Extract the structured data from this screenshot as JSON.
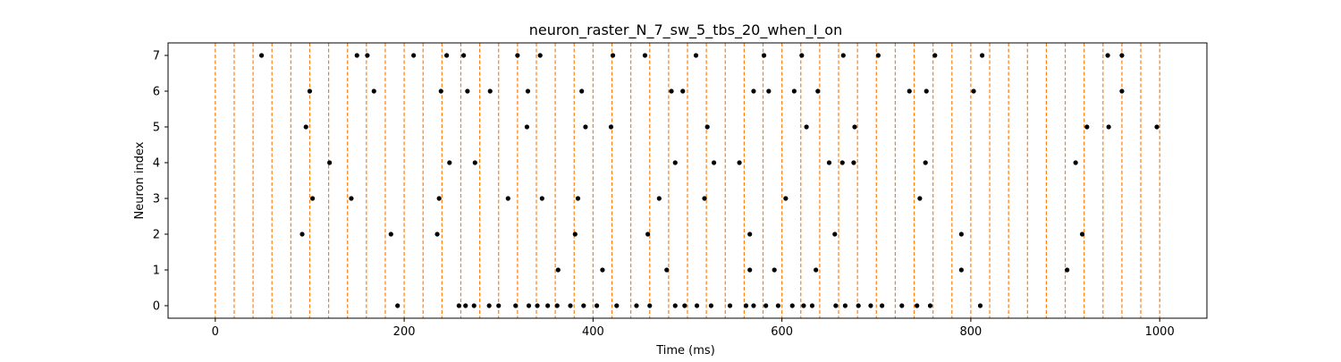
{
  "chart_data": {
    "type": "scatter",
    "title": "neuron_raster_N_7_sw_5_tbs_20_when_I_on",
    "xlabel": "Time (ms)",
    "ylabel": "Neuron index",
    "xlim": [
      -50,
      1050
    ],
    "ylim": [
      -0.35,
      7.35
    ],
    "xticks": [
      0,
      200,
      400,
      600,
      800,
      1000
    ],
    "yticks": [
      0,
      1,
      2,
      3,
      4,
      5,
      6,
      7
    ],
    "grid": false,
    "colors": {
      "spike": "#000000",
      "window": "#ff7f0e"
    },
    "window_lines": [
      0,
      20,
      40,
      60,
      80,
      100,
      120,
      140,
      160,
      180,
      200,
      220,
      240,
      260,
      280,
      300,
      320,
      340,
      360,
      380,
      400,
      420,
      440,
      460,
      480,
      500,
      520,
      540,
      560,
      580,
      600,
      620,
      640,
      660,
      680,
      700,
      720,
      740,
      760,
      780,
      800,
      820,
      840,
      860,
      880,
      900,
      920,
      940,
      960,
      980,
      1000
    ],
    "series": [
      {
        "neuron": 0,
        "x": [
          193,
          258,
          265,
          274,
          290,
          300,
          318,
          332,
          341,
          352,
          362,
          376,
          390,
          404,
          425,
          446,
          460,
          487,
          497,
          510,
          525,
          545,
          562,
          570,
          583,
          596,
          611,
          623,
          632,
          657,
          667,
          681,
          694,
          706,
          727,
          743,
          757,
          810
        ]
      },
      {
        "neuron": 1,
        "x": [
          363,
          410,
          478,
          566,
          592,
          636,
          790,
          902
        ]
      },
      {
        "neuron": 2,
        "x": [
          92,
          186,
          235,
          381,
          458,
          566,
          656,
          790,
          918
        ]
      },
      {
        "neuron": 3,
        "x": [
          103,
          144,
          237,
          310,
          346,
          384,
          470,
          518,
          604,
          746
        ]
      },
      {
        "neuron": 4,
        "x": [
          121,
          248,
          275,
          487,
          528,
          555,
          650,
          664,
          676,
          752,
          911
        ]
      },
      {
        "neuron": 5,
        "x": [
          96,
          330,
          392,
          419,
          521,
          626,
          677,
          923,
          946,
          997
        ]
      },
      {
        "neuron": 6,
        "x": [
          100,
          168,
          239,
          267,
          291,
          331,
          388,
          483,
          495,
          570,
          586,
          613,
          638,
          735,
          753,
          803,
          960
        ]
      },
      {
        "neuron": 7,
        "x": [
          49,
          150,
          161,
          210,
          245,
          263,
          320,
          344,
          421,
          455,
          509,
          581,
          621,
          665,
          702,
          762,
          812,
          945,
          960
        ]
      }
    ]
  }
}
